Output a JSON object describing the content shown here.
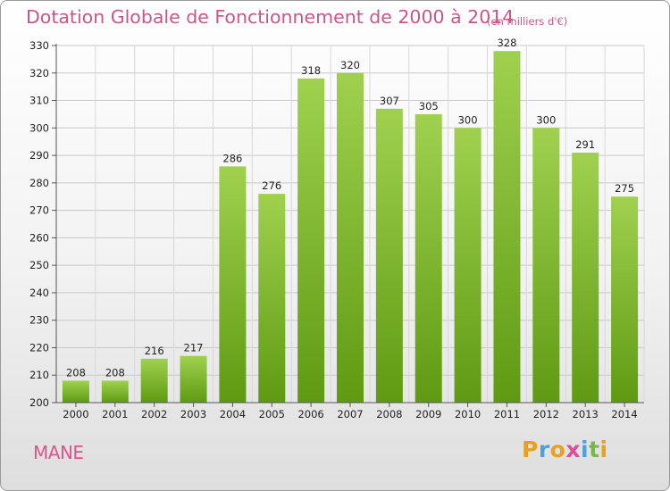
{
  "header": {
    "title": "Dotation Globale de Fonctionnement de 2000 à 2014",
    "subtitle": "(en milliers d'€)"
  },
  "commune": "MANE",
  "logo": {
    "text": "Proxiti",
    "letters": [
      "P",
      "r",
      "o",
      "x",
      "i",
      "t",
      "i"
    ],
    "colors": [
      "#e8a020",
      "#4f9fd9",
      "#e8a020",
      "#d94f9a",
      "#4f9fd9",
      "#7ab648",
      "#e8a020"
    ]
  },
  "chart_data": {
    "type": "bar",
    "categories": [
      "2000",
      "2001",
      "2002",
      "2003",
      "2004",
      "2005",
      "2006",
      "2007",
      "2008",
      "2009",
      "2010",
      "2011",
      "2012",
      "2013",
      "2014"
    ],
    "values": [
      208,
      208,
      216,
      217,
      286,
      276,
      318,
      320,
      307,
      305,
      300,
      328,
      300,
      291,
      275
    ],
    "data_labels": [
      "208",
      "208",
      "216",
      "217",
      "286",
      "276",
      "318",
      "320",
      "307",
      "305",
      "300",
      "328",
      "300",
      "291",
      "275"
    ],
    "ylim": [
      200,
      330
    ],
    "yticks": [
      "200",
      "210",
      "220",
      "230",
      "240",
      "250",
      "260",
      "270",
      "280",
      "290",
      "300",
      "310",
      "320",
      "330"
    ],
    "grid": true,
    "bar_color_top": "#9fd14f",
    "bar_color_bottom": "#5f9a12"
  }
}
